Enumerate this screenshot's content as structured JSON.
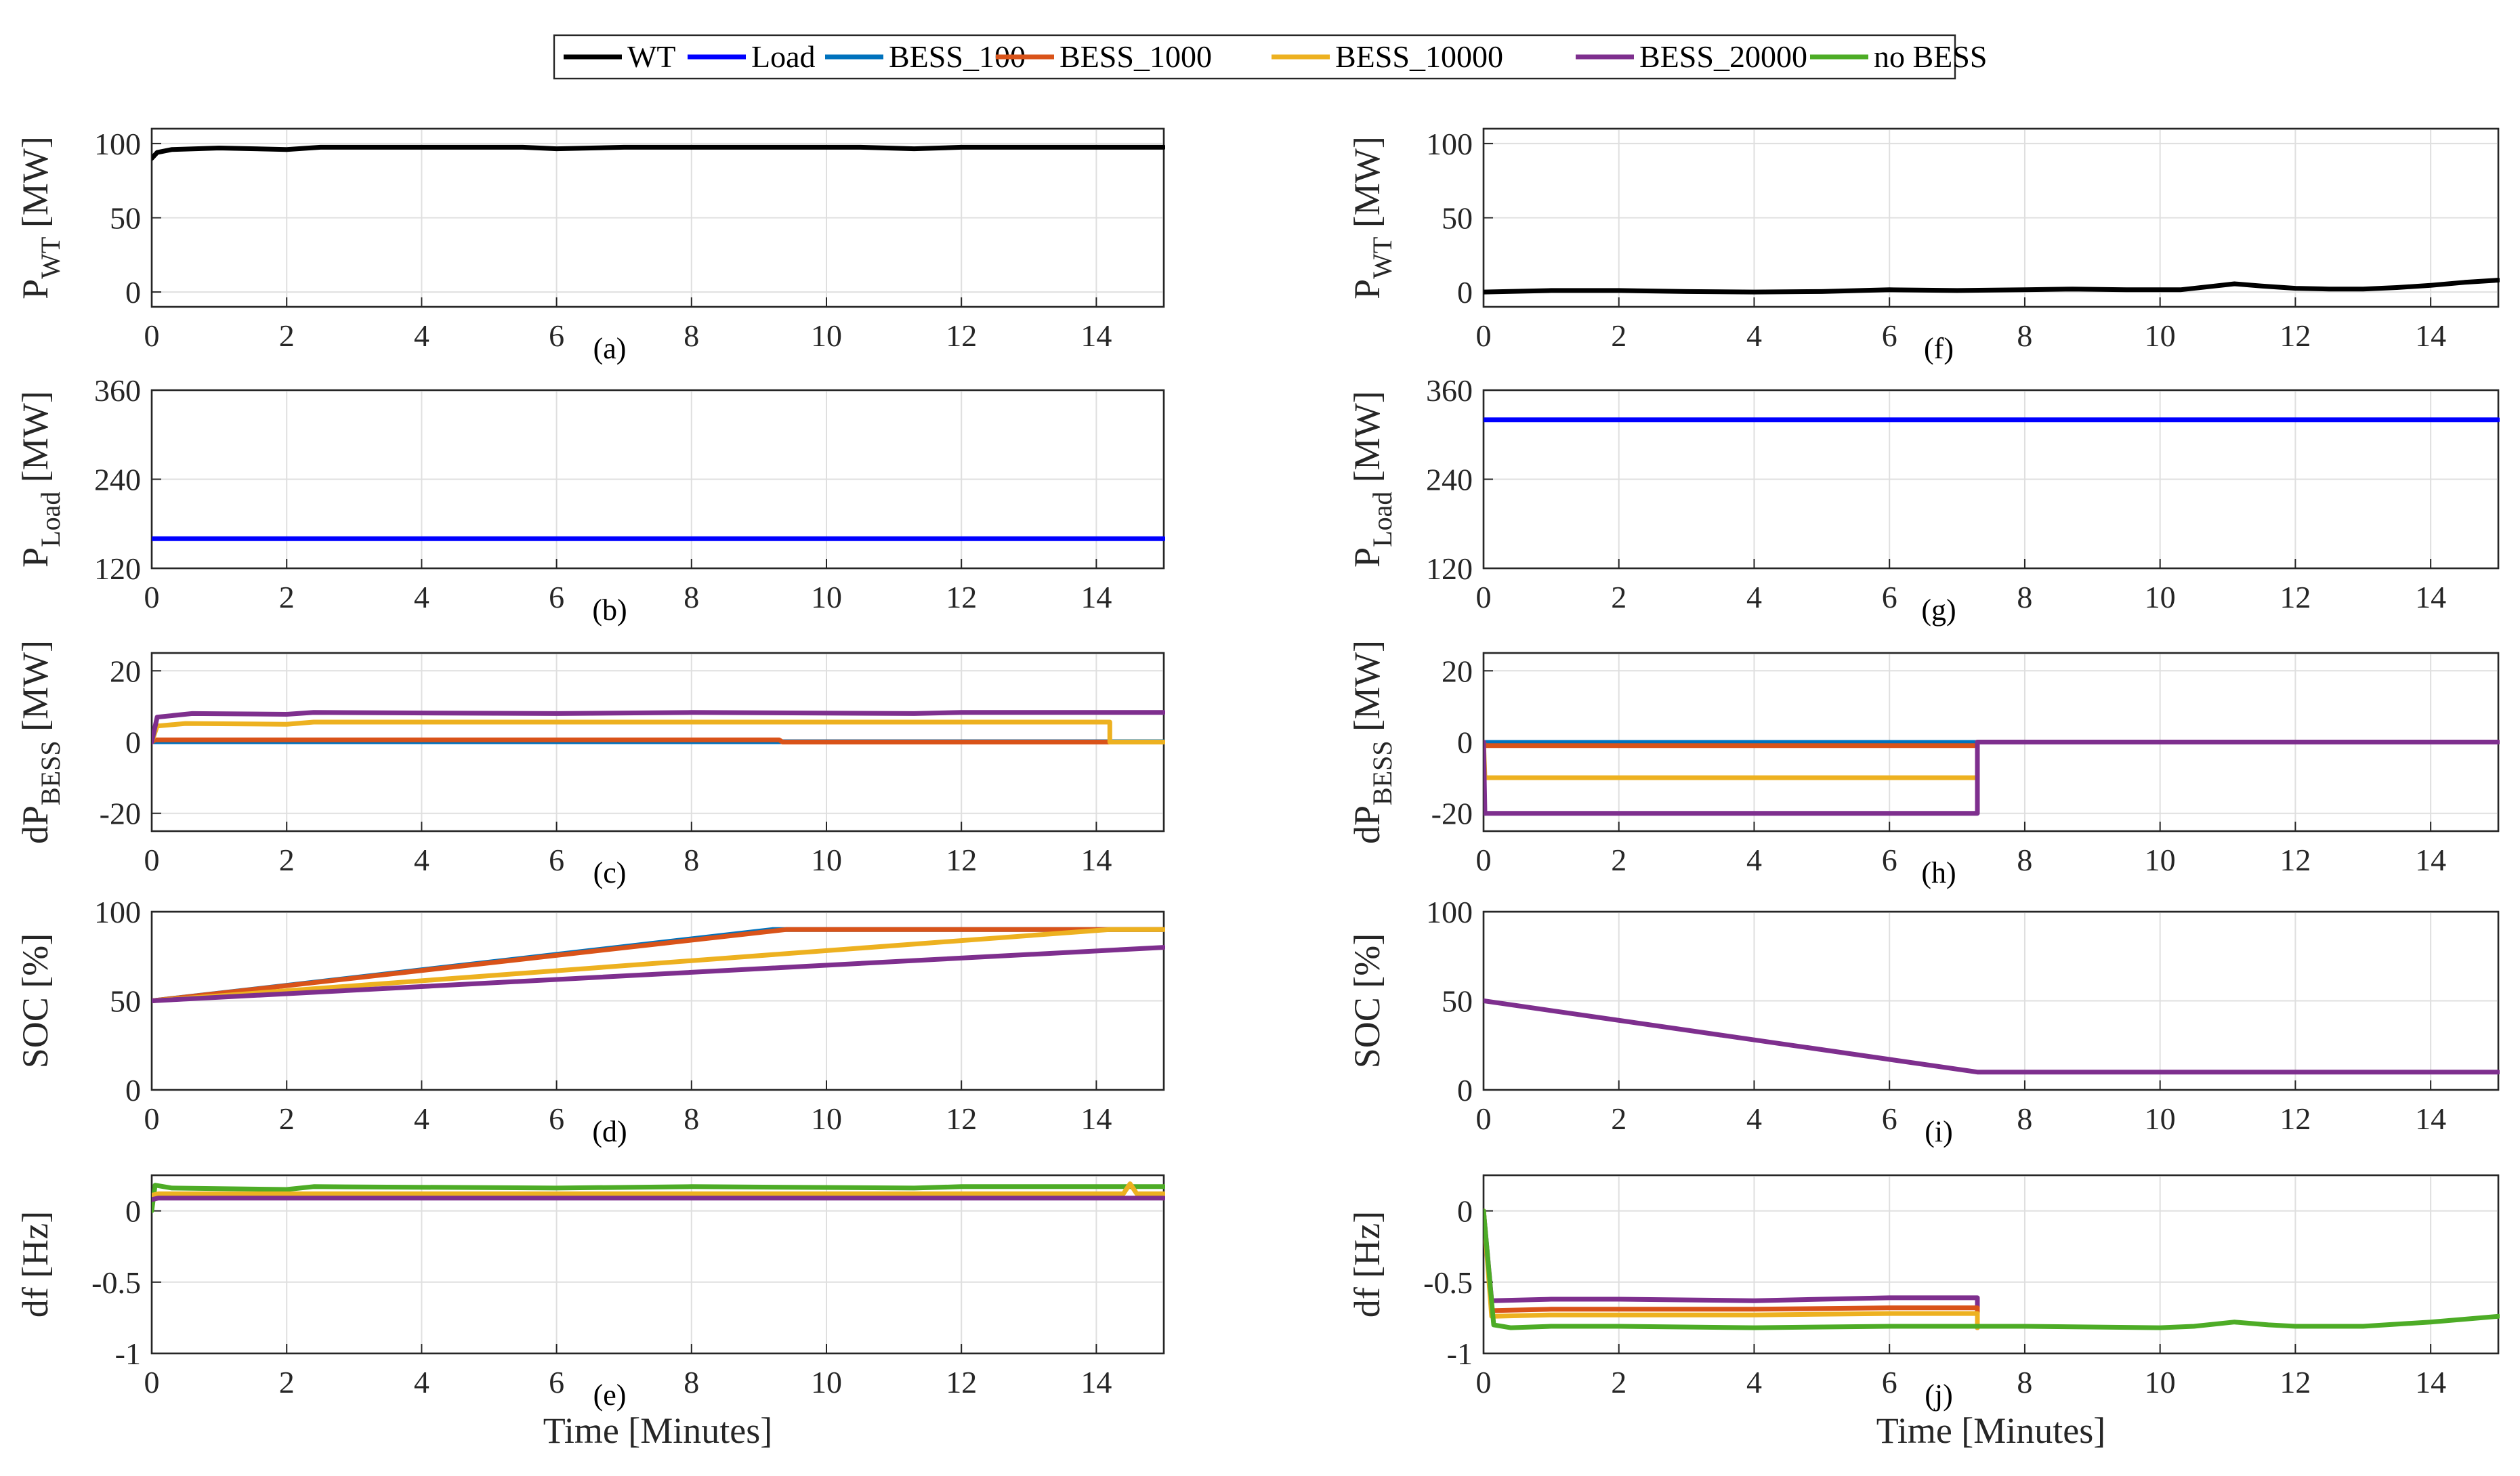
{
  "chart_data": {
    "type": "line",
    "xlabel": "Time [Minutes]",
    "xlim": [
      0,
      15
    ],
    "xticks": [
      0,
      2,
      4,
      6,
      8,
      10,
      12,
      14
    ],
    "legend": {
      "placement": "top-center",
      "entries": [
        {
          "key": "WT",
          "label": "WT",
          "color": "#000000"
        },
        {
          "key": "Load",
          "label": "Load",
          "color": "#0000ff"
        },
        {
          "key": "BESS_100",
          "label": "BESS_100",
          "color": "#0072bd"
        },
        {
          "key": "BESS_1000",
          "label": "BESS_1000",
          "color": "#d95319"
        },
        {
          "key": "BESS_10000",
          "label": "BESS_10000",
          "color": "#edb120"
        },
        {
          "key": "BESS_20000",
          "label": "BESS_20000",
          "color": "#7e2f8e"
        },
        {
          "key": "noBESS",
          "label": "no BESS",
          "color": "#4dac26"
        }
      ]
    },
    "panels": [
      {
        "id": "a",
        "label": "(a)",
        "column": "left",
        "ylabel": {
          "main": "P",
          "sub": "WT",
          "unit": " [MW]"
        },
        "ylim": [
          -10,
          110
        ],
        "yticks": [
          0,
          50,
          100
        ],
        "ytick_labels": [
          "0",
          "50",
          "100"
        ],
        "series": [
          {
            "key": "WT",
            "x": [
              0,
              0.08,
              0.3,
              1,
              2,
              2.5,
              4,
              5.5,
              6,
              7,
              9,
              10.5,
              11.3,
              12,
              13,
              14,
              15
            ],
            "y": [
              90,
              94,
              96,
              97,
              96,
              97.5,
              97.5,
              97.5,
              96.5,
              97.5,
              97.5,
              97.5,
              96.5,
              97.5,
              97.5,
              97.5,
              97.5
            ]
          }
        ]
      },
      {
        "id": "b",
        "label": "(b)",
        "column": "left",
        "ylabel": {
          "main": "P",
          "sub": "Load",
          "unit": " [MW]"
        },
        "ylim": [
          120,
          360
        ],
        "yticks": [
          120,
          240,
          360
        ],
        "ytick_labels": [
          "120",
          "240",
          "360"
        ],
        "series": [
          {
            "key": "Load",
            "x": [
              0,
              15
            ],
            "y": [
              160,
              160
            ]
          }
        ]
      },
      {
        "id": "c",
        "label": "(c)",
        "column": "left",
        "ylabel": {
          "main": "dP",
          "sub": "BESS",
          "unit": " [MW]"
        },
        "ylim": [
          -25,
          25
        ],
        "yticks": [
          -20,
          0,
          20
        ],
        "ytick_labels": [
          "-20",
          "0",
          "20"
        ],
        "series": [
          {
            "key": "BESS_100",
            "x": [
              0,
              15
            ],
            "y": [
              0.1,
              0.1
            ]
          },
          {
            "key": "BESS_1000",
            "x": [
              0,
              0.05,
              9.3,
              9.35,
              15
            ],
            "y": [
              0,
              0.6,
              0.6,
              0,
              0
            ]
          },
          {
            "key": "BESS_10000",
            "x": [
              0,
              0.08,
              0.5,
              2,
              2.4,
              6,
              10,
              14.2,
              14.2,
              15
            ],
            "y": [
              0,
              4.5,
              5.2,
              5.0,
              5.6,
              5.6,
              5.6,
              5.6,
              0,
              0
            ]
          },
          {
            "key": "BESS_20000",
            "x": [
              0,
              0.08,
              0.6,
              2,
              2.4,
              6,
              8,
              11.3,
              12,
              15
            ],
            "y": [
              0,
              7,
              8,
              7.8,
              8.3,
              8.0,
              8.3,
              8.0,
              8.3,
              8.3
            ]
          }
        ]
      },
      {
        "id": "d",
        "label": "(d)",
        "column": "left",
        "ylabel": {
          "main": "SOC [%]",
          "sub": "",
          "unit": ""
        },
        "ylim": [
          0,
          100
        ],
        "yticks": [
          0,
          50,
          100
        ],
        "ytick_labels": [
          "0",
          "50",
          "100"
        ],
        "series": [
          {
            "key": "BESS_100",
            "x": [
              0,
              9.2,
              15
            ],
            "y": [
              50,
              90,
              90
            ]
          },
          {
            "key": "BESS_1000",
            "x": [
              0,
              9.4,
              15
            ],
            "y": [
              50,
              90,
              90
            ]
          },
          {
            "key": "BESS_10000",
            "x": [
              0,
              14.2,
              15
            ],
            "y": [
              50,
              90,
              90
            ]
          },
          {
            "key": "BESS_20000",
            "x": [
              0,
              15
            ],
            "y": [
              50,
              80
            ]
          }
        ]
      },
      {
        "id": "e",
        "label": "(e)",
        "column": "left",
        "ylabel": {
          "main": "df [Hz]",
          "sub": "",
          "unit": ""
        },
        "ylim": [
          -1,
          0.25
        ],
        "yticks": [
          -1,
          -0.5,
          0
        ],
        "ytick_labels": [
          "-1",
          "-0.5",
          "0"
        ],
        "series": [
          {
            "key": "noBESS",
            "x": [
              0,
              0.05,
              0.3,
              2,
              2.4,
              6,
              8,
              11.3,
              12,
              15
            ],
            "y": [
              0,
              0.18,
              0.16,
              0.15,
              0.17,
              0.16,
              0.17,
              0.16,
              0.17,
              0.17
            ]
          },
          {
            "key": "BESS_10000",
            "x": [
              0,
              0.1,
              2,
              6,
              14.4,
              14.5,
              14.6,
              15
            ],
            "y": [
              0.11,
              0.12,
              0.12,
              0.12,
              0.12,
              0.19,
              0.12,
              0.12
            ]
          },
          {
            "key": "BESS_20000",
            "x": [
              0,
              0.1,
              15
            ],
            "y": [
              0.08,
              0.09,
              0.09
            ]
          }
        ]
      },
      {
        "id": "f",
        "label": "(f)",
        "column": "right",
        "ylabel": {
          "main": "P",
          "sub": "WT",
          "unit": " [MW]"
        },
        "ylim": [
          -10,
          110
        ],
        "yticks": [
          0,
          50,
          100
        ],
        "ytick_labels": [
          "0",
          "50",
          "100"
        ],
        "series": [
          {
            "key": "WT",
            "x": [
              0,
              1,
              2,
              3,
              4,
              5,
              6,
              7,
              8,
              8.7,
              9.5,
              10.3,
              10.8,
              11.1,
              11.5,
              12,
              12.5,
              13,
              13.5,
              14,
              14.5,
              15
            ],
            "y": [
              0,
              1,
              1,
              0.3,
              0,
              0.3,
              1.5,
              1,
              1.5,
              2,
              1.5,
              1.5,
              4,
              5.5,
              4,
              2.5,
              2,
              2,
              3,
              4.5,
              6.5,
              8
            ]
          }
        ]
      },
      {
        "id": "g",
        "label": "(g)",
        "column": "right",
        "ylabel": {
          "main": "P",
          "sub": "Load",
          "unit": " [MW]"
        },
        "ylim": [
          120,
          360
        ],
        "yticks": [
          120,
          240,
          360
        ],
        "ytick_labels": [
          "120",
          "240",
          "360"
        ],
        "series": [
          {
            "key": "Load",
            "x": [
              0,
              15
            ],
            "y": [
              320,
              320
            ]
          }
        ]
      },
      {
        "id": "h",
        "label": "(h)",
        "column": "right",
        "ylabel": {
          "main": "dP",
          "sub": "BESS",
          "unit": " [MW]"
        },
        "ylim": [
          -25,
          25
        ],
        "yticks": [
          -20,
          0,
          20
        ],
        "ytick_labels": [
          "-20",
          "0",
          "20"
        ],
        "series": [
          {
            "key": "BESS_100",
            "x": [
              0,
              7.3,
              7.3,
              15
            ],
            "y": [
              -0.1,
              -0.1,
              0,
              0
            ]
          },
          {
            "key": "BESS_1000",
            "x": [
              0,
              0.02,
              7.3,
              7.3,
              15
            ],
            "y": [
              0,
              -1,
              -1,
              0,
              0
            ]
          },
          {
            "key": "BESS_10000",
            "x": [
              0,
              0.02,
              7.3,
              7.3,
              15
            ],
            "y": [
              0,
              -10,
              -10,
              0,
              0
            ]
          },
          {
            "key": "BESS_20000",
            "x": [
              0,
              0.02,
              7.3,
              7.3,
              15
            ],
            "y": [
              0,
              -20,
              -20,
              0,
              0
            ]
          }
        ]
      },
      {
        "id": "i",
        "label": "(i)",
        "column": "right",
        "ylabel": {
          "main": "SOC [%]",
          "sub": "",
          "unit": ""
        },
        "ylim": [
          0,
          100
        ],
        "yticks": [
          0,
          50,
          100
        ],
        "ytick_labels": [
          "0",
          "50",
          "100"
        ],
        "series": [
          {
            "key": "BESS_20000",
            "x": [
              0,
              7.3,
              15
            ],
            "y": [
              50,
              10,
              10
            ]
          }
        ]
      },
      {
        "id": "j",
        "label": "(j)",
        "column": "right",
        "ylabel": {
          "main": "df [Hz]",
          "sub": "",
          "unit": ""
        },
        "ylim": [
          -1,
          0.25
        ],
        "yticks": [
          -1,
          -0.5,
          0
        ],
        "ytick_labels": [
          "-1",
          "-0.5",
          "0"
        ],
        "series": [
          {
            "key": "BESS_20000",
            "x": [
              0,
              0.12,
              1,
              2,
              4,
              6,
              7.3,
              7.3
            ],
            "y": [
              0,
              -0.63,
              -0.62,
              -0.62,
              -0.63,
              -0.61,
              -0.61,
              -0.82
            ]
          },
          {
            "key": "BESS_1000",
            "x": [
              0,
              0.12,
              1,
              4,
              6,
              7.3,
              7.3
            ],
            "y": [
              0,
              -0.7,
              -0.69,
              -0.69,
              -0.68,
              -0.68,
              -0.82
            ]
          },
          {
            "key": "BESS_10000",
            "x": [
              0,
              0.12,
              1,
              4,
              6,
              7.3,
              7.3
            ],
            "y": [
              0,
              -0.74,
              -0.73,
              -0.73,
              -0.72,
              -0.72,
              -0.82
            ]
          },
          {
            "key": "noBESS",
            "x": [
              0,
              0.15,
              0.4,
              1,
              2,
              4,
              6,
              7.3,
              8,
              10,
              10.5,
              11.1,
              11.6,
              12,
              13,
              14,
              15
            ],
            "y": [
              0,
              -0.8,
              -0.82,
              -0.81,
              -0.81,
              -0.82,
              -0.81,
              -0.81,
              -0.81,
              -0.82,
              -0.81,
              -0.78,
              -0.8,
              -0.81,
              -0.81,
              -0.78,
              -0.74
            ]
          }
        ]
      }
    ]
  }
}
